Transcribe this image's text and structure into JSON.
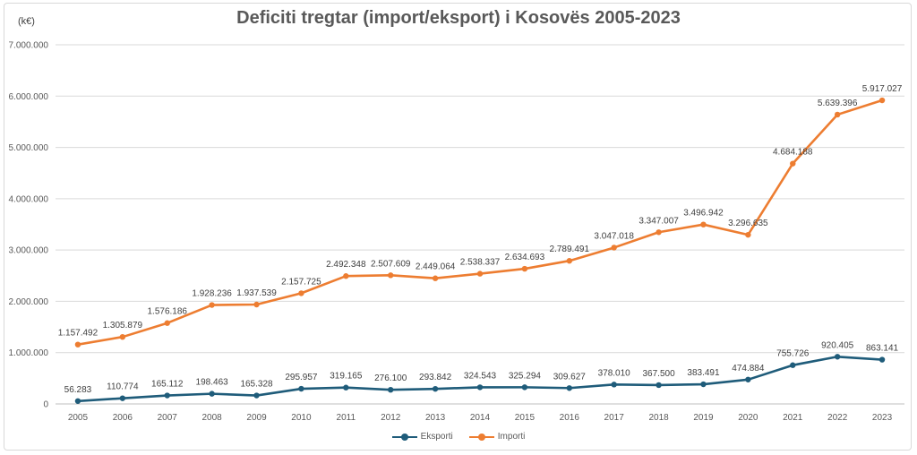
{
  "chart_data": {
    "type": "line",
    "title": "Deficiti tregtar (import/eksport) i Kosovës 2005-2023",
    "unit_label": "(k€)",
    "x": [
      "2005",
      "2006",
      "2007",
      "2008",
      "2009",
      "2010",
      "2011",
      "2012",
      "2013",
      "2014",
      "2015",
      "2016",
      "2017",
      "2018",
      "2019",
      "2020",
      "2021",
      "2022",
      "2023"
    ],
    "ylim": [
      0,
      7000000
    ],
    "yticks": [
      0,
      1000000,
      2000000,
      3000000,
      4000000,
      5000000,
      6000000,
      7000000
    ],
    "ytick_labels": [
      "0",
      "1.000.000",
      "2.000.000",
      "3.000.000",
      "4.000.000",
      "5.000.000",
      "6.000.000",
      "7.000.000"
    ],
    "grid": true,
    "legend_position": "bottom",
    "series": [
      {
        "name": "Eksporti",
        "color": "#1f5c7a",
        "values": [
          56283,
          110774,
          165112,
          198463,
          165328,
          295957,
          319165,
          276100,
          293842,
          324543,
          325294,
          309627,
          378010,
          367500,
          383491,
          474884,
          755726,
          920405,
          863141
        ],
        "labels": [
          "56.283",
          "110.774",
          "165.112",
          "198.463",
          "165.328",
          "295.957",
          "319.165",
          "276.100",
          "293.842",
          "324.543",
          "325.294",
          "309.627",
          "378.010",
          "367.500",
          "383.491",
          "474.884",
          "755.726",
          "920.405",
          "863.141"
        ]
      },
      {
        "name": "Importi",
        "color": "#ed7d31",
        "values": [
          1157492,
          1305879,
          1576186,
          1928236,
          1937539,
          2157725,
          2492348,
          2507609,
          2449064,
          2538337,
          2634693,
          2789491,
          3047018,
          3347007,
          3496942,
          3296635,
          4684188,
          5639396,
          5917027
        ],
        "labels": [
          "1.157.492",
          "1.305.879",
          "1.576.186",
          "1.928.236",
          "1.937.539",
          "2.157.725",
          "2.492.348",
          "2.507.609",
          "2.449.064",
          "2.538.337",
          "2.634.693",
          "2.789.491",
          "3.047.018",
          "3.347.007",
          "3.496.942",
          "3.296.635",
          "4.684.188",
          "5.639.396",
          "5.917.027"
        ]
      }
    ]
  }
}
